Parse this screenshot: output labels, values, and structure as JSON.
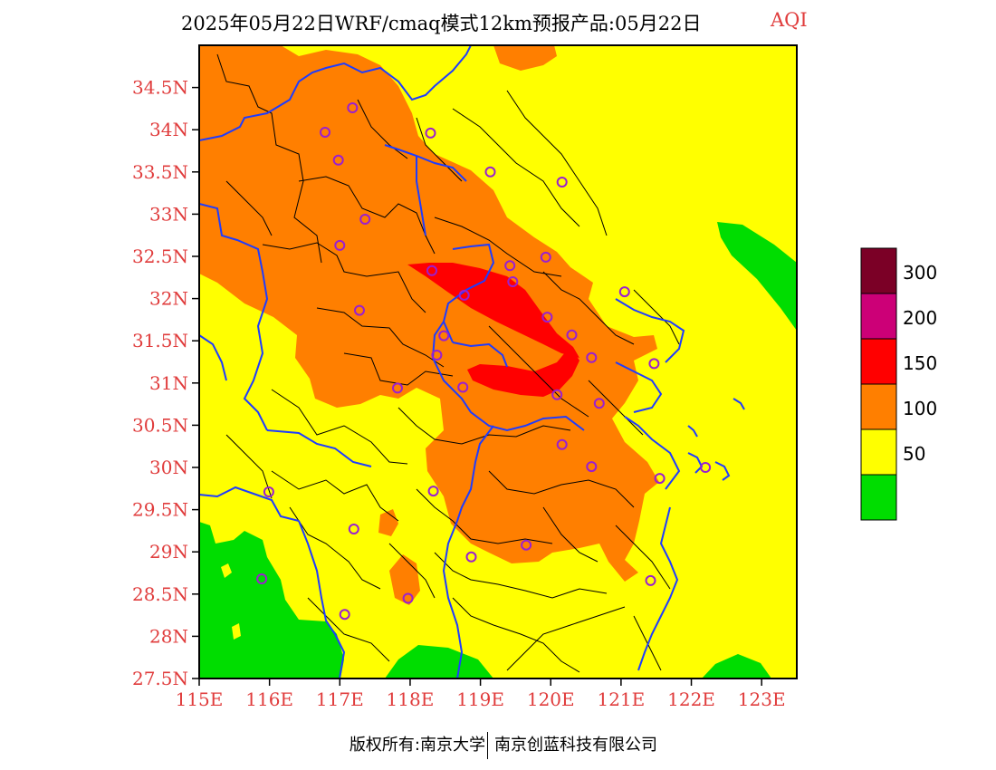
{
  "title": {
    "main": "2025年05月22日WRF/cmaq模式12km预报产品:05月22日",
    "variable": "AQI",
    "variable_color": "#e03c3c"
  },
  "map": {
    "lat_labels": [
      "34.5N",
      "34N",
      "33.5N",
      "33N",
      "32.5N",
      "32N",
      "31.5N",
      "31N",
      "30.5N",
      "30N",
      "29.5N",
      "29N",
      "28.5N",
      "28N",
      "27.5N"
    ],
    "lon_labels": [
      "115E",
      "116E",
      "117E",
      "118E",
      "119E",
      "120E",
      "121E",
      "122E",
      "123E"
    ],
    "extent": {
      "lon_min": 115,
      "lon_max": 123.5,
      "lat_min": 27.5,
      "lat_max": 35.0
    },
    "colors": {
      "good": "#00dd00",
      "moderate": "#ffff00",
      "unhealthy_sensitive": "#ff7f00",
      "unhealthy": "#ff0000",
      "very_unhealthy": "#cc0077",
      "hazardous": "#7b0026",
      "county_border": "#000000",
      "province_border": "#1e3cff",
      "station_marker": "#9a1fd0",
      "axis_label": "#e03c3c"
    }
  },
  "legend": {
    "labels": [
      "50",
      "100",
      "150",
      "200",
      "300"
    ],
    "bins": [
      {
        "color": "#7b0026"
      },
      {
        "color": "#cc0077"
      },
      {
        "color": "#ff0000"
      },
      {
        "color": "#ff7f00"
      },
      {
        "color": "#ffff00"
      },
      {
        "color": "#00dd00"
      }
    ]
  },
  "stations": [
    {
      "lon": 116.79,
      "lat": 33.97
    },
    {
      "lon": 117.18,
      "lat": 34.26
    },
    {
      "lon": 118.29,
      "lat": 33.96
    },
    {
      "lon": 116.98,
      "lat": 33.64
    },
    {
      "lon": 119.14,
      "lat": 33.5
    },
    {
      "lon": 120.16,
      "lat": 33.38
    },
    {
      "lon": 117.36,
      "lat": 32.94
    },
    {
      "lon": 117.0,
      "lat": 32.63
    },
    {
      "lon": 119.93,
      "lat": 32.49
    },
    {
      "lon": 118.31,
      "lat": 32.33
    },
    {
      "lon": 119.42,
      "lat": 32.39
    },
    {
      "lon": 119.46,
      "lat": 32.2
    },
    {
      "lon": 118.77,
      "lat": 32.04
    },
    {
      "lon": 121.05,
      "lat": 32.08
    },
    {
      "lon": 117.28,
      "lat": 31.86
    },
    {
      "lon": 119.95,
      "lat": 31.78
    },
    {
      "lon": 120.3,
      "lat": 31.57
    },
    {
      "lon": 118.48,
      "lat": 31.56
    },
    {
      "lon": 118.38,
      "lat": 31.33
    },
    {
      "lon": 120.58,
      "lat": 31.3
    },
    {
      "lon": 121.47,
      "lat": 31.23
    },
    {
      "lon": 117.82,
      "lat": 30.94
    },
    {
      "lon": 118.75,
      "lat": 30.95
    },
    {
      "lon": 120.09,
      "lat": 30.86
    },
    {
      "lon": 120.69,
      "lat": 30.76
    },
    {
      "lon": 120.16,
      "lat": 30.27
    },
    {
      "lon": 120.58,
      "lat": 30.01
    },
    {
      "lon": 121.55,
      "lat": 29.87
    },
    {
      "lon": 122.2,
      "lat": 30.0
    },
    {
      "lon": 115.99,
      "lat": 29.71
    },
    {
      "lon": 118.33,
      "lat": 29.72
    },
    {
      "lon": 117.2,
      "lat": 29.27
    },
    {
      "lon": 119.65,
      "lat": 29.08
    },
    {
      "lon": 118.87,
      "lat": 28.94
    },
    {
      "lon": 115.89,
      "lat": 28.68
    },
    {
      "lon": 121.42,
      "lat": 28.66
    },
    {
      "lon": 117.97,
      "lat": 28.45
    },
    {
      "lon": 117.07,
      "lat": 28.26
    }
  ],
  "footer": {
    "left": "版权所有:南京大学",
    "right": "南京创蓝科技有限公司"
  }
}
